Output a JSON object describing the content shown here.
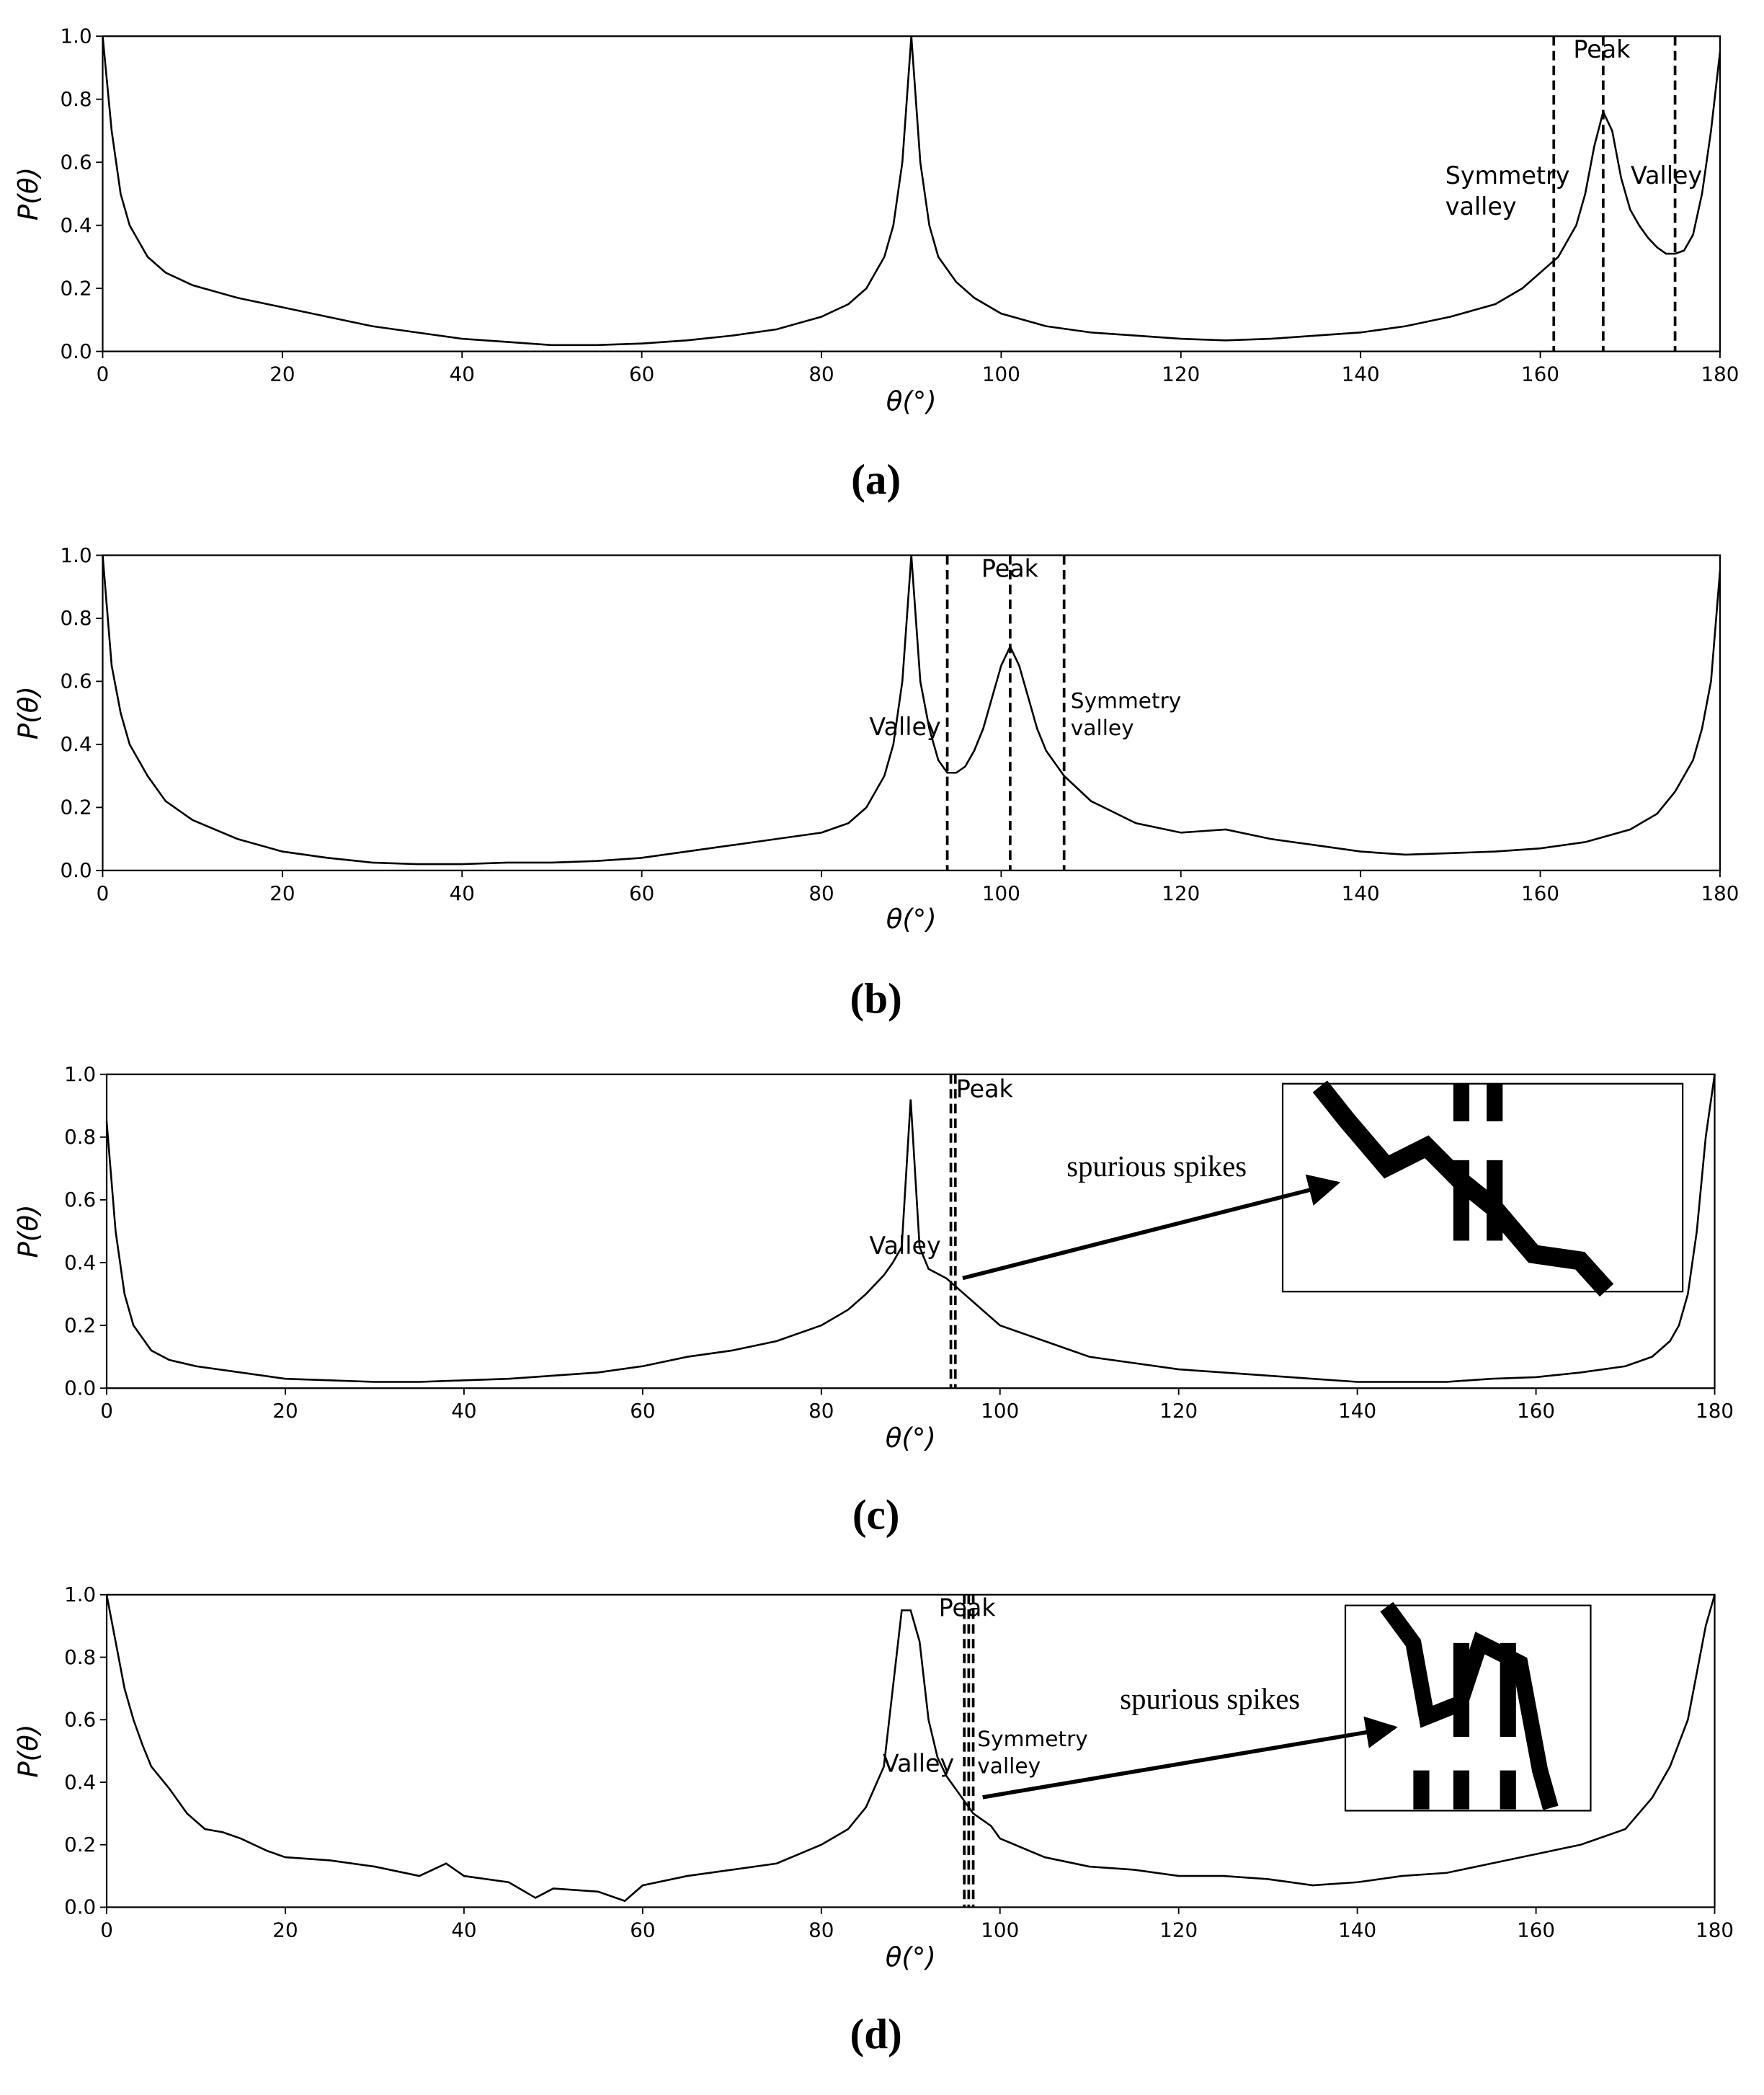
{
  "chart_data": [
    {
      "type": "line",
      "caption": "(a)",
      "xlabel": "θ(°)",
      "ylabel": "P(θ)",
      "color": "#000000",
      "x": [
        0,
        1,
        2,
        3,
        5,
        7,
        10,
        15,
        20,
        25,
        30,
        35,
        40,
        45,
        50,
        55,
        60,
        65,
        70,
        75,
        80,
        83,
        85,
        87,
        88,
        89,
        90,
        91,
        92,
        93,
        95,
        97,
        100,
        105,
        110,
        115,
        120,
        125,
        130,
        135,
        140,
        145,
        150,
        155,
        158,
        160,
        162,
        164,
        165,
        166,
        167,
        168,
        169,
        170,
        171,
        172,
        173,
        174,
        175,
        176,
        177,
        178,
        179,
        180
      ],
      "values": [
        1.0,
        0.7,
        0.5,
        0.4,
        0.3,
        0.25,
        0.21,
        0.17,
        0.14,
        0.11,
        0.08,
        0.06,
        0.04,
        0.03,
        0.02,
        0.02,
        0.025,
        0.035,
        0.05,
        0.07,
        0.11,
        0.15,
        0.2,
        0.3,
        0.4,
        0.6,
        1.0,
        0.6,
        0.4,
        0.3,
        0.22,
        0.17,
        0.12,
        0.08,
        0.06,
        0.05,
        0.04,
        0.035,
        0.04,
        0.05,
        0.06,
        0.08,
        0.11,
        0.15,
        0.2,
        0.25,
        0.3,
        0.4,
        0.5,
        0.65,
        0.76,
        0.7,
        0.55,
        0.45,
        0.4,
        0.36,
        0.33,
        0.31,
        0.31,
        0.32,
        0.37,
        0.5,
        0.7,
        0.95
      ],
      "vlines": [
        161.5,
        167,
        175
      ],
      "annotations": [
        [
          "Peak"
        ],
        [
          "Symmetry",
          "valley"
        ],
        [
          "Valley"
        ]
      ],
      "xlim": [
        0,
        180
      ],
      "ylim": [
        0,
        1
      ],
      "xticks": [
        0,
        20,
        40,
        60,
        80,
        100,
        120,
        140,
        160,
        180
      ],
      "yticks": [
        {
          "value": 0,
          "label": "0.0"
        },
        0.2,
        0.4,
        0.6,
        0.8,
        {
          "value": 1,
          "label": "1.0"
        }
      ]
    },
    {
      "type": "line",
      "caption": "(b)",
      "xlabel": "θ(°)",
      "ylabel": "P(θ)",
      "color": "#000000",
      "x": [
        0,
        1,
        2,
        3,
        5,
        7,
        10,
        15,
        20,
        25,
        30,
        35,
        40,
        45,
        50,
        55,
        60,
        65,
        70,
        75,
        80,
        83,
        85,
        87,
        88,
        89,
        90,
        91,
        92,
        93,
        94,
        95,
        96,
        97,
        98,
        99,
        100,
        101,
        102,
        103,
        104,
        105,
        107,
        110,
        115,
        120,
        125,
        130,
        135,
        140,
        145,
        150,
        155,
        160,
        165,
        170,
        173,
        175,
        177,
        178,
        179,
        180
      ],
      "values": [
        1.0,
        0.65,
        0.5,
        0.4,
        0.3,
        0.22,
        0.16,
        0.1,
        0.06,
        0.04,
        0.025,
        0.02,
        0.02,
        0.025,
        0.025,
        0.03,
        0.04,
        0.06,
        0.08,
        0.1,
        0.12,
        0.15,
        0.2,
        0.3,
        0.4,
        0.6,
        1.0,
        0.6,
        0.45,
        0.35,
        0.31,
        0.31,
        0.33,
        0.38,
        0.45,
        0.55,
        0.65,
        0.71,
        0.65,
        0.55,
        0.45,
        0.38,
        0.3,
        0.22,
        0.15,
        0.12,
        0.13,
        0.1,
        0.08,
        0.06,
        0.05,
        0.055,
        0.06,
        0.07,
        0.09,
        0.13,
        0.18,
        0.25,
        0.35,
        0.45,
        0.6,
        0.95
      ],
      "vlines": [
        94,
        101,
        107
      ],
      "annotations": [
        [
          "Peak"
        ],
        [
          "Valley"
        ],
        [
          "Symmetry",
          "valley"
        ]
      ],
      "xlim": [
        0,
        180
      ],
      "ylim": [
        0,
        1
      ],
      "xticks": [
        0,
        20,
        40,
        60,
        80,
        100,
        120,
        140,
        160,
        180
      ],
      "yticks": [
        {
          "value": 0,
          "label": "0.0"
        },
        0.2,
        0.4,
        0.6,
        0.8,
        {
          "value": 1,
          "label": "1.0"
        }
      ]
    },
    {
      "type": "line",
      "caption": "(c)",
      "xlabel": "θ(°)",
      "ylabel": "P(θ)",
      "color": "#000000",
      "x": [
        0,
        1,
        2,
        3,
        5,
        7,
        10,
        15,
        20,
        25,
        30,
        35,
        40,
        45,
        50,
        55,
        60,
        65,
        70,
        75,
        80,
        83,
        85,
        87,
        88,
        89,
        90,
        91,
        92,
        94,
        96,
        98,
        100,
        105,
        110,
        115,
        120,
        125,
        130,
        135,
        140,
        145,
        150,
        155,
        160,
        165,
        170,
        173,
        175,
        176,
        177,
        178,
        179,
        180
      ],
      "values": [
        0.85,
        0.5,
        0.3,
        0.2,
        0.12,
        0.09,
        0.07,
        0.05,
        0.03,
        0.025,
        0.02,
        0.02,
        0.025,
        0.03,
        0.04,
        0.05,
        0.07,
        0.1,
        0.12,
        0.15,
        0.2,
        0.25,
        0.3,
        0.36,
        0.4,
        0.45,
        0.92,
        0.45,
        0.38,
        0.35,
        0.3,
        0.25,
        0.2,
        0.15,
        0.1,
        0.08,
        0.06,
        0.05,
        0.04,
        0.03,
        0.02,
        0.02,
        0.02,
        0.03,
        0.035,
        0.05,
        0.07,
        0.1,
        0.15,
        0.2,
        0.3,
        0.5,
        0.8,
        1.0
      ],
      "vlines": [
        94.5,
        95
      ],
      "annotations": [
        [
          "Peak"
        ],
        [
          "Valley"
        ],
        [
          "spurious spikes"
        ]
      ],
      "xlim": [
        0,
        180
      ],
      "ylim": [
        0,
        1
      ],
      "xticks": [
        0,
        20,
        40,
        60,
        80,
        100,
        120,
        140,
        160,
        180
      ],
      "yticks": [
        {
          "value": 0,
          "label": "0.0"
        },
        0.2,
        0.4,
        0.6,
        0.8,
        {
          "value": 1,
          "label": "1.0"
        }
      ]
    },
    {
      "type": "line",
      "caption": "(d)",
      "xlabel": "θ(°)",
      "ylabel": "P(θ)",
      "color": "#000000",
      "x": [
        0,
        1,
        2,
        3,
        4,
        5,
        7,
        9,
        11,
        13,
        15,
        18,
        20,
        25,
        30,
        35,
        38,
        40,
        45,
        48,
        50,
        55,
        58,
        60,
        65,
        70,
        75,
        80,
        83,
        85,
        87,
        88,
        89,
        90,
        91,
        92,
        93,
        94,
        95,
        96,
        97,
        99,
        100,
        105,
        110,
        115,
        120,
        125,
        130,
        135,
        140,
        145,
        150,
        155,
        160,
        165,
        170,
        173,
        175,
        177,
        178,
        179,
        180
      ],
      "values": [
        1.0,
        0.85,
        0.7,
        0.6,
        0.52,
        0.45,
        0.38,
        0.3,
        0.25,
        0.24,
        0.22,
        0.18,
        0.16,
        0.15,
        0.13,
        0.1,
        0.14,
        0.1,
        0.08,
        0.03,
        0.06,
        0.05,
        0.02,
        0.07,
        0.1,
        0.12,
        0.14,
        0.2,
        0.25,
        0.32,
        0.45,
        0.7,
        0.95,
        0.95,
        0.85,
        0.6,
        0.48,
        0.42,
        0.38,
        0.34,
        0.3,
        0.26,
        0.22,
        0.16,
        0.13,
        0.12,
        0.1,
        0.1,
        0.09,
        0.07,
        0.08,
        0.1,
        0.11,
        0.14,
        0.17,
        0.2,
        0.25,
        0.35,
        0.45,
        0.6,
        0.75,
        0.9,
        1.0
      ],
      "vlines": [
        96,
        96.5,
        97
      ],
      "annotations": [
        [
          "Peak"
        ],
        [
          "Valley"
        ],
        [
          "Symmetry",
          "valley"
        ],
        [
          "spurious spikes"
        ]
      ],
      "xlim": [
        0,
        180
      ],
      "ylim": [
        0,
        1
      ],
      "xticks": [
        0,
        20,
        40,
        60,
        80,
        100,
        120,
        140,
        160,
        180
      ],
      "yticks": [
        {
          "value": 0,
          "label": "0.0"
        },
        0.2,
        0.4,
        0.6,
        0.8,
        {
          "value": 1,
          "label": "1.0"
        }
      ]
    }
  ]
}
